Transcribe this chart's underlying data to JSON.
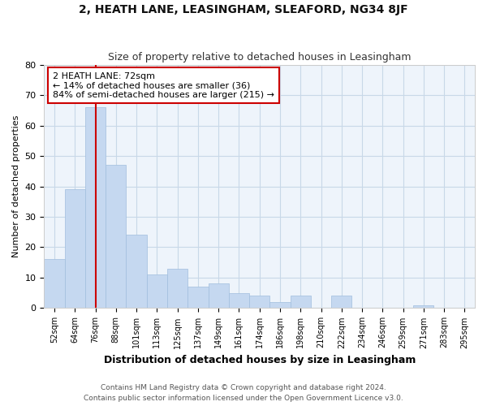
{
  "title1": "2, HEATH LANE, LEASINGHAM, SLEAFORD, NG34 8JF",
  "title2": "Size of property relative to detached houses in Leasingham",
  "xlabel": "Distribution of detached houses by size in Leasingham",
  "ylabel": "Number of detached properties",
  "categories": [
    "52sqm",
    "64sqm",
    "76sqm",
    "88sqm",
    "101sqm",
    "113sqm",
    "125sqm",
    "137sqm",
    "149sqm",
    "161sqm",
    "174sqm",
    "186sqm",
    "198sqm",
    "210sqm",
    "222sqm",
    "234sqm",
    "246sqm",
    "259sqm",
    "271sqm",
    "283sqm",
    "295sqm"
  ],
  "values": [
    16,
    39,
    66,
    47,
    24,
    11,
    13,
    7,
    8,
    5,
    4,
    2,
    4,
    0,
    4,
    0,
    0,
    0,
    1,
    0,
    0
  ],
  "bar_color": "#c5d8f0",
  "bar_edge_color": "#a0bede",
  "property_line_x": 2.0,
  "annotation_text": "2 HEATH LANE: 72sqm\n← 14% of detached houses are smaller (36)\n84% of semi-detached houses are larger (215) →",
  "annotation_box_color": "#ffffff",
  "annotation_box_edge_color": "#cc0000",
  "vline_color": "#cc0000",
  "grid_color": "#c8d8e8",
  "background_color": "#ffffff",
  "plot_bg_color": "#eef4fb",
  "footer1": "Contains HM Land Registry data © Crown copyright and database right 2024.",
  "footer2": "Contains public sector information licensed under the Open Government Licence v3.0.",
  "ylim": [
    0,
    80
  ],
  "yticks": [
    0,
    10,
    20,
    30,
    40,
    50,
    60,
    70,
    80
  ]
}
